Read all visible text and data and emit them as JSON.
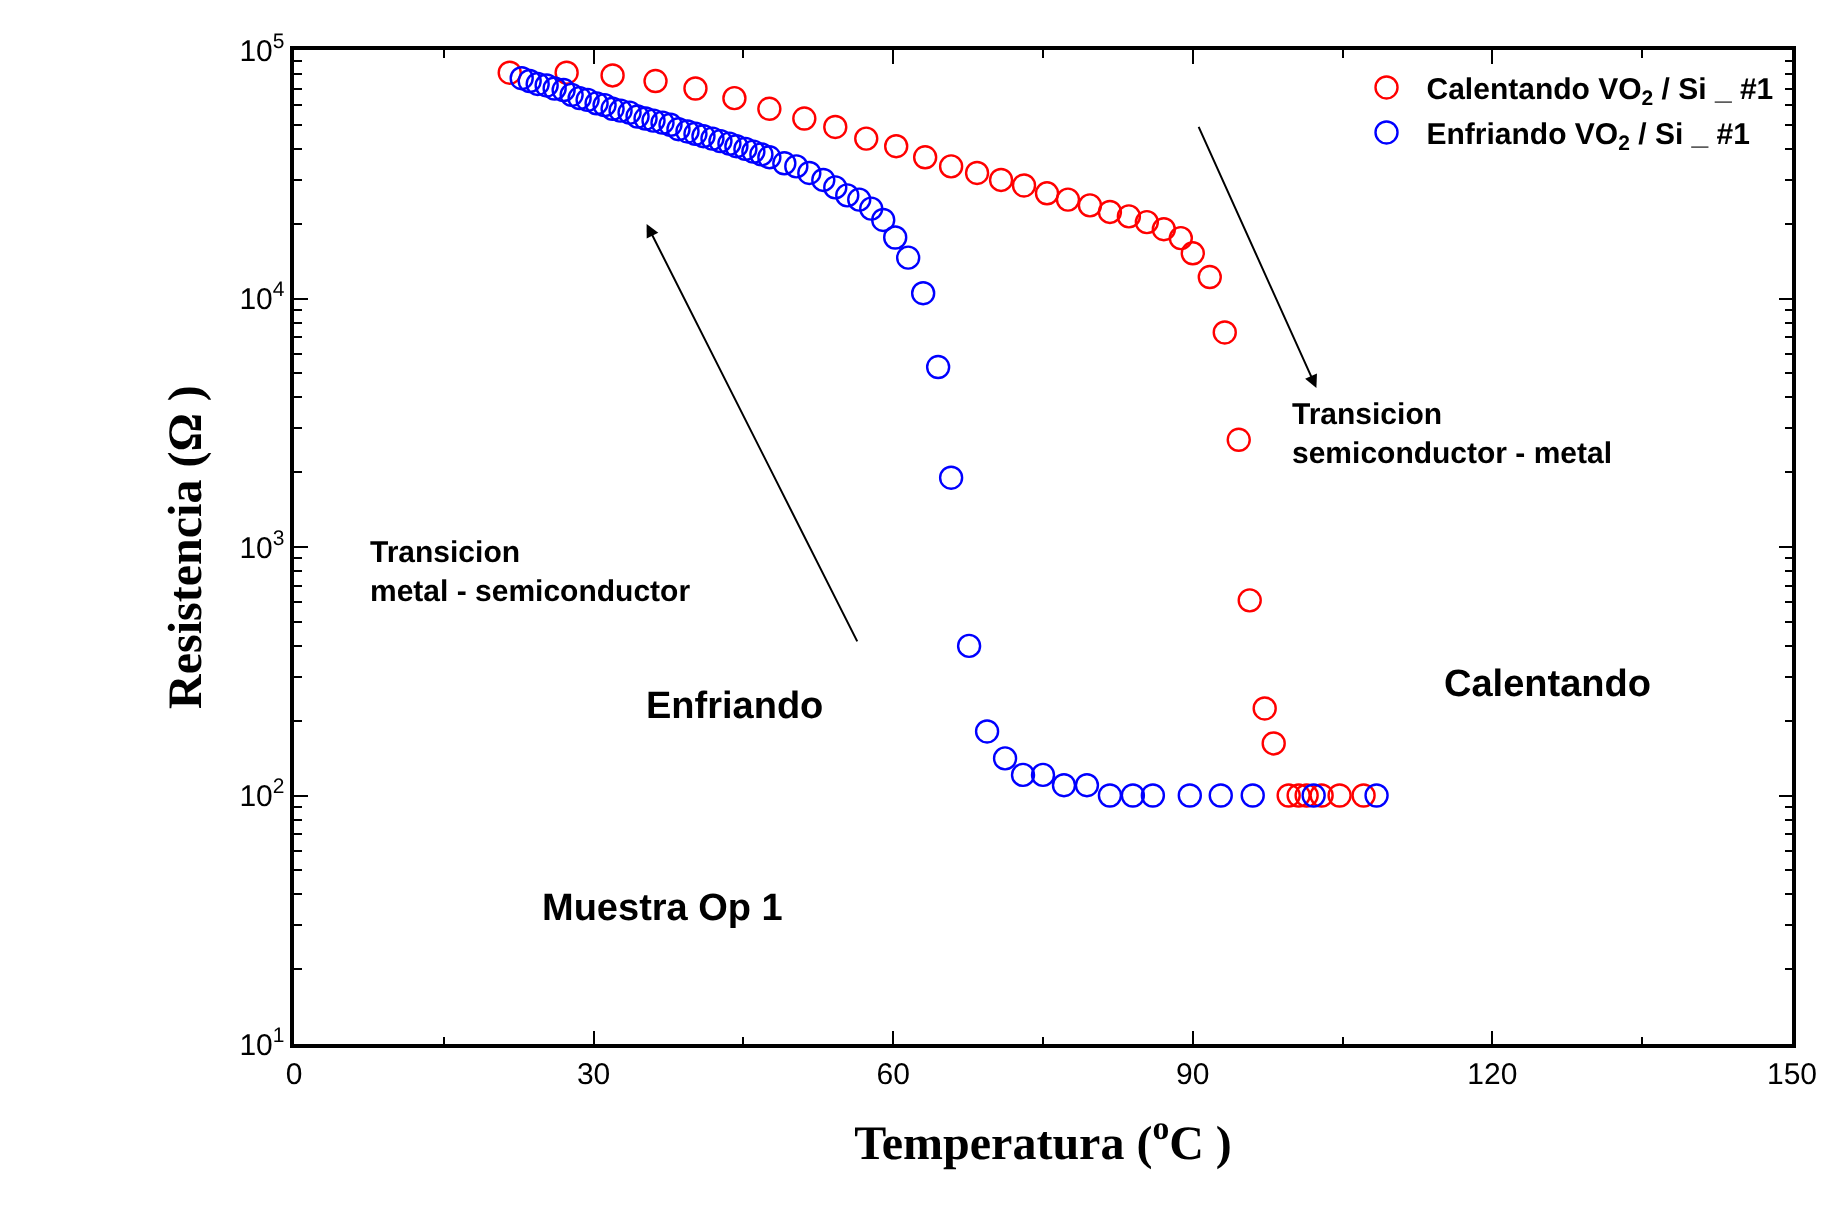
{
  "chart_data": {
    "type": "scatter",
    "xlabel": "Temperatura ($^{o}$C )",
    "ylabel": "Resistencia (Ω )",
    "xlim": [
      0,
      150
    ],
    "xticks": [
      0,
      30,
      60,
      90,
      120,
      150
    ],
    "ylim": [
      10,
      100000
    ],
    "log": "y",
    "yticks": [
      {
        "value": 10,
        "label": "10$^{1}$"
      },
      {
        "value": 100,
        "label": "10$^{2}$"
      },
      {
        "value": 1000,
        "label": "10$^{3}$"
      },
      {
        "value": 10000,
        "label": "10$^{4}$"
      },
      {
        "value": 100000,
        "label": "10$^{5}$"
      }
    ],
    "legend": "top right",
    "marker": "circle",
    "annotations": [
      "Transicion\nsemiconductor - metal",
      "Transicion\nmetal - semiconductor",
      "Enfriando",
      "Calentando",
      "Muestra Op 1"
    ],
    "series": [
      {
        "name": "Calentando VO$_{2}$ / Si _ #1",
        "color": "#ff0000",
        "x": [
          21.6,
          27.3,
          31.9,
          36.2,
          40.2,
          44.1,
          47.6,
          51.1,
          54.2,
          57.3,
          60.3,
          63.2,
          65.8,
          68.4,
          70.8,
          73.1,
          75.4,
          77.5,
          79.7,
          81.7,
          83.6,
          85.4,
          87.1,
          88.8,
          90.0,
          91.7,
          93.2,
          94.6,
          95.7,
          97.2,
          98.1,
          99.6,
          100.6,
          101.4,
          102.9,
          104.7,
          107.1
        ],
        "values": [
          81000,
          81000,
          79000,
          75000,
          70000,
          64000,
          58000,
          53000,
          49000,
          44000,
          41000,
          37000,
          34000,
          32000,
          30000,
          28500,
          26500,
          25000,
          23700,
          22300,
          21400,
          20300,
          19000,
          17500,
          15200,
          12200,
          7300,
          2700,
          610,
          224,
          162,
          100,
          100,
          100,
          100,
          100,
          100
        ]
      },
      {
        "name": "Enfriando VO$_{2}$ / Si _ #1",
        "color": "#0000ff",
        "x": [
          22.8,
          23.6,
          24.4,
          25.3,
          26.1,
          27.0,
          27.8,
          28.6,
          29.4,
          30.3,
          31.1,
          31.9,
          32.7,
          33.6,
          34.4,
          35.2,
          36.0,
          36.9,
          37.7,
          38.5,
          39.4,
          40.2,
          41.0,
          41.9,
          42.7,
          43.6,
          44.3,
          45.2,
          46.0,
          46.8,
          47.6,
          49.1,
          50.3,
          51.6,
          53.0,
          54.2,
          55.4,
          56.6,
          57.8,
          59.0,
          60.2,
          61.5,
          63.0,
          64.5,
          65.8,
          67.6,
          69.4,
          71.2,
          73.0,
          75.0,
          77.1,
          79.4,
          81.7,
          84.0,
          86.0,
          89.7,
          92.8,
          96.0,
          102.1,
          108.4
        ],
        "values": [
          77000,
          75000,
          73000,
          72000,
          70000,
          69000,
          66000,
          64000,
          63000,
          61000,
          60000,
          58000,
          57000,
          56000,
          54000,
          53000,
          52000,
          51000,
          50000,
          48000,
          47000,
          46000,
          45000,
          44000,
          43000,
          42000,
          41000,
          40000,
          39000,
          38000,
          37000,
          35000,
          34000,
          32000,
          30000,
          28000,
          26000,
          25000,
          23000,
          20700,
          17600,
          14600,
          10500,
          5300,
          1900,
          400,
          181,
          141,
          121,
          121,
          110,
          110,
          100,
          100,
          100,
          100,
          100,
          100,
          100,
          100
        ]
      }
    ]
  }
}
